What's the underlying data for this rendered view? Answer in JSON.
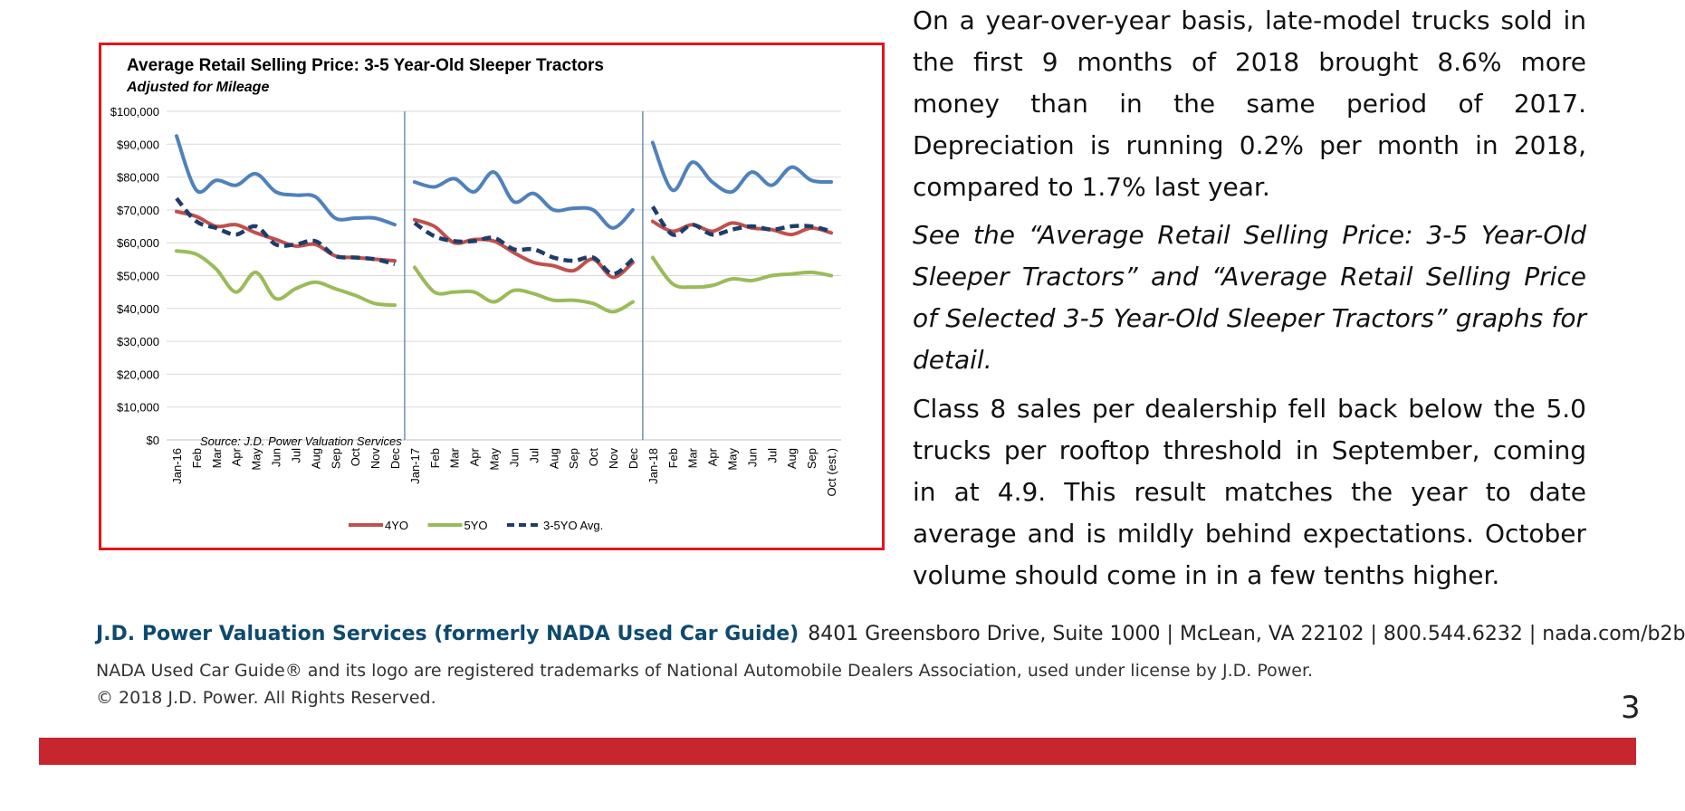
{
  "chart_data": {
    "type": "line",
    "title": "Average Retail Selling Price: 3-5 Year-Old Sleeper Tractors",
    "subtitle": "Adjusted for Mileage",
    "source_note": "Source: J.D. Power Valuation Services",
    "y_tick_labels": [
      "$0",
      "$10,000",
      "$20,000",
      "$30,000",
      "$40,000",
      "$50,000",
      "$60,000",
      "$70,000",
      "$80,000",
      "$90,000",
      "$100,000"
    ],
    "ylim": [
      0,
      100000
    ],
    "grid": true,
    "legend_position": "bottom",
    "categories": [
      "Jan-16",
      "Feb",
      "Mar",
      "Apr",
      "May",
      "Jun",
      "Jul",
      "Aug",
      "Sep",
      "Oct",
      "Nov",
      "Dec",
      "Jan-17",
      "Feb",
      "Mar",
      "Apr",
      "May",
      "Jun",
      "Jul",
      "Aug",
      "Sep",
      "Oct",
      "Nov",
      "Dec",
      "Jan-18",
      "Feb",
      "Mar",
      "Apr",
      "May",
      "Jun",
      "Jul",
      "Aug",
      "Sep",
      "Oct (est.)"
    ],
    "year_breaks_after": [
      11,
      23
    ],
    "series": [
      {
        "name": "",
        "color": "#4f81bd",
        "dashed": false,
        "in_legend": false,
        "values": [
          92500,
          76000,
          79000,
          77500,
          81000,
          75500,
          74500,
          74000,
          67500,
          67500,
          67500,
          65500,
          78500,
          77000,
          79500,
          75500,
          81500,
          72500,
          75000,
          70000,
          70500,
          70000,
          64500,
          70000,
          90500,
          76000,
          84500,
          78500,
          75500,
          81500,
          77500,
          83000,
          79000,
          78500
        ]
      },
      {
        "name": "4YO",
        "color": "#c0504d",
        "dashed": false,
        "in_legend": true,
        "values": [
          69500,
          68000,
          65000,
          65500,
          63000,
          61000,
          59000,
          59500,
          56000,
          55500,
          55000,
          54500,
          67000,
          65000,
          60000,
          61000,
          60500,
          57000,
          54000,
          53000,
          51500,
          55000,
          49500,
          54000,
          66500,
          63500,
          65500,
          63500,
          66000,
          64500,
          64000,
          62500,
          64500,
          63000
        ]
      },
      {
        "name": "5YO",
        "color": "#9bbb59",
        "dashed": false,
        "in_legend": true,
        "values": [
          57500,
          56500,
          52000,
          45000,
          51000,
          43000,
          46000,
          48000,
          46000,
          44000,
          41500,
          41000,
          52500,
          45000,
          45000,
          45000,
          42000,
          45500,
          44500,
          42500,
          42500,
          41500,
          39000,
          42000,
          55500,
          47500,
          46500,
          47000,
          49000,
          48500,
          50000,
          50500,
          51000,
          50000
        ]
      },
      {
        "name": "3-5YO Avg.",
        "color": "#1f3d6b",
        "dashed": true,
        "in_legend": true,
        "values": [
          73500,
          66500,
          64500,
          62500,
          65000,
          59500,
          59500,
          60500,
          56000,
          55500,
          55000,
          53500,
          66000,
          62000,
          60500,
          60500,
          61500,
          58000,
          58000,
          55500,
          54500,
          55500,
          50500,
          55000,
          71000,
          62500,
          65500,
          62500,
          64000,
          65000,
          64000,
          65000,
          65000,
          63500
        ]
      }
    ]
  },
  "paragraphs": {
    "p1": "On a year-over-year basis, late-model trucks sold in the first 9 months of 2018 brought 8.6% more money than in the same period of 2017. Depreciation is running 0.2% per month in 2018, compared to 1.7% last year.",
    "p2": "See the “Average Retail Selling Price: 3-5 Year-Old Sleeper Tractors” and “Average Retail Selling Price of Selected 3-5 Year-Old Sleeper Tractors” graphs for detail.",
    "p3": "Class 8 sales per dealership fell back below the 5.0 trucks per rooftop threshold in September, coming in at 4.9. This result matches the year to date average and is mildly behind expectations. October volume should come in in a few tenths higher."
  },
  "footer": {
    "company": "J.D. Power Valuation Services (formerly NADA Used Car Guide)",
    "address": "8401 Greensboro Drive, Suite 1000 | McLean, VA 22102 | 800.544.6232 | nada.com/b2b",
    "trademark": "NADA Used Car Guide® and its logo are registered trademarks of National Automobile Dealers Association, used under license by J.D. Power.",
    "copyright": "© 2018 J.D. Power. All Rights Reserved."
  },
  "page_number": "3",
  "colors": {
    "frame_border": "#e2151d",
    "company_blue": "#0e4a6e",
    "bottom_bar": "#c8262f"
  }
}
